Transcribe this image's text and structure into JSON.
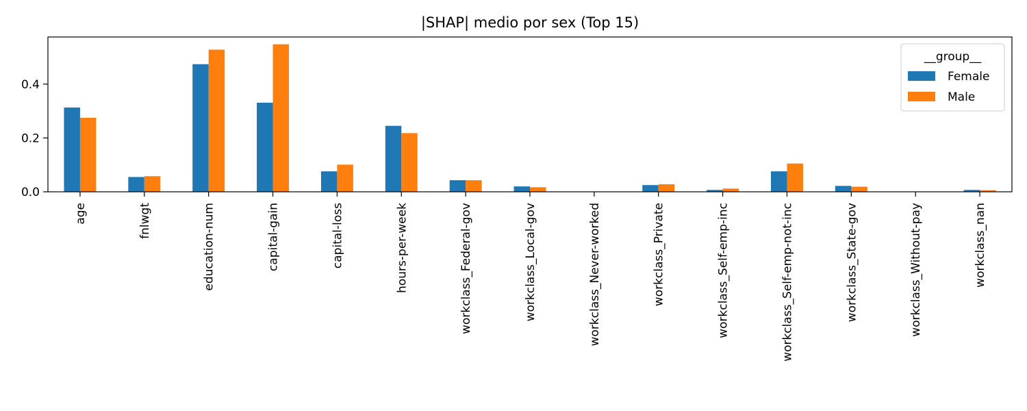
{
  "chart_data": {
    "type": "bar",
    "title": "|SHAP| medio por sex (Top 15)",
    "xlabel": "",
    "ylabel": "",
    "categories": [
      "age",
      "fnlwgt",
      "education-num",
      "capital-gain",
      "capital-loss",
      "hours-per-week",
      "workclass_Federal-gov",
      "workclass_Local-gov",
      "workclass_Never-worked",
      "workclass_Private",
      "workclass_Self-emp-inc",
      "workclass_Self-emp-not-inc",
      "workclass_State-gov",
      "workclass_Without-pay",
      "workclass_nan"
    ],
    "series": [
      {
        "name": "Female",
        "color": "#1f77b4",
        "values": [
          0.313,
          0.055,
          0.474,
          0.331,
          0.076,
          0.245,
          0.043,
          0.02,
          0.0,
          0.025,
          0.007,
          0.076,
          0.022,
          0.0,
          0.007
        ]
      },
      {
        "name": "Male",
        "color": "#ff7f0e",
        "values": [
          0.275,
          0.058,
          0.528,
          0.548,
          0.101,
          0.218,
          0.043,
          0.017,
          0.0,
          0.028,
          0.012,
          0.105,
          0.019,
          0.0,
          0.006
        ]
      }
    ],
    "ylim": [
      0,
      0.575
    ],
    "yticks": [
      0.0,
      0.2,
      0.4
    ],
    "ytick_labels": [
      "0.0",
      "0.2",
      "0.4"
    ],
    "grid": false,
    "legend": {
      "title": "__group__",
      "placement": "top-right"
    }
  }
}
